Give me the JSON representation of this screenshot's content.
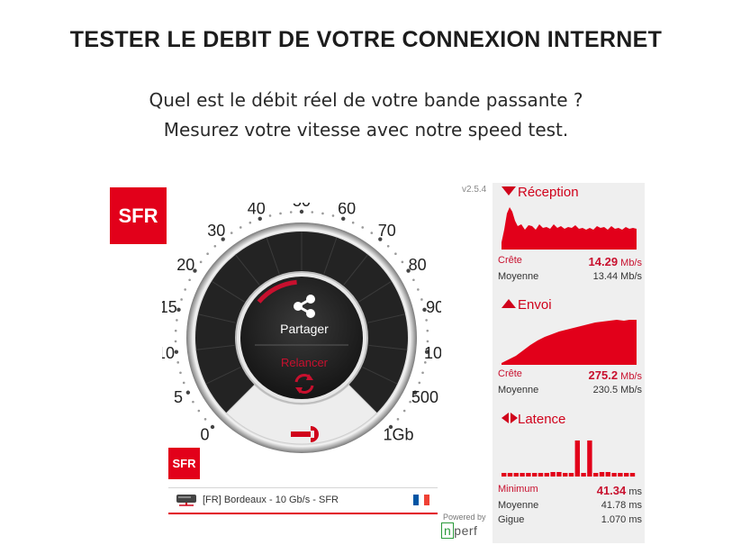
{
  "page": {
    "title": "TESTER LE DEBIT DE VOTRE CONNEXION INTERNET",
    "subtitle_line1": "Quel est le débit réel de votre bande passante ?",
    "subtitle_line2": "Mesurez votre vitesse avec notre speed test."
  },
  "brand": {
    "logo_text": "SFR",
    "accent": "#e2001a"
  },
  "gauge": {
    "scale_labels": [
      "0",
      "5",
      "10",
      "15",
      "20",
      "30",
      "40",
      "50",
      "60",
      "70",
      "80",
      "90",
      "100",
      "500",
      "1Gb"
    ],
    "share_label": "Partager",
    "relaunch_label": "Relancer"
  },
  "server": {
    "label": "[FR] Bordeaux - 10 Gb/s - SFR",
    "flag_colors": [
      "#0055a4",
      "#ffffff",
      "#ef4135"
    ]
  },
  "version": "v2.5.4",
  "powered_by": "Powered by",
  "nperf": {
    "prefix": "n",
    "suffix": "perf"
  },
  "reception": {
    "title": "Réception",
    "peak_label": "Crête",
    "peak_value": "14.29",
    "peak_unit": "Mb/s",
    "avg_label": "Moyenne",
    "avg_value": "13.44 Mb/s"
  },
  "upload": {
    "title": "Envoi",
    "peak_label": "Crête",
    "peak_value": "275.2",
    "peak_unit": "Mb/s",
    "avg_label": "Moyenne",
    "avg_value": "230.5 Mb/s"
  },
  "latency": {
    "title": "Latence",
    "min_label": "Minimum",
    "min_value": "41.34",
    "min_unit": "ms",
    "avg_label": "Moyenne",
    "avg_value": "41.78 ms",
    "jitter_label": "Gigue",
    "jitter_value": "1.070 ms"
  }
}
